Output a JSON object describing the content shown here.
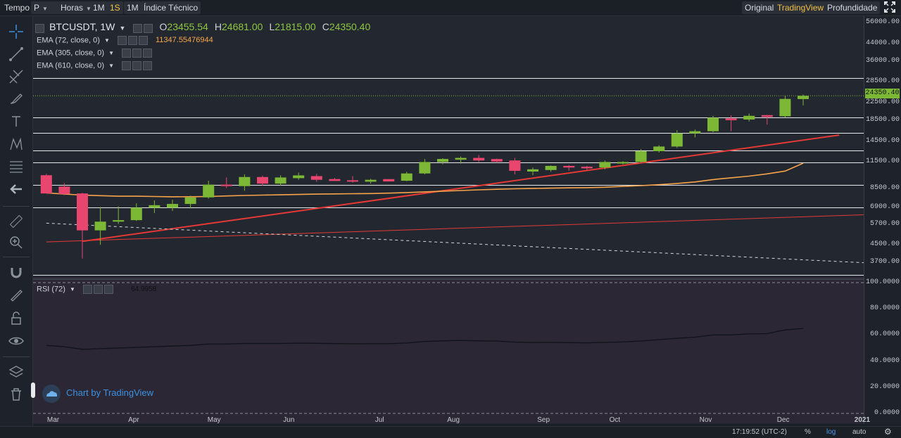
{
  "toolbar": {
    "tempo_label": "Tempo",
    "period_value": "P",
    "hours_label": "Horas",
    "interval_1m": "1M",
    "interval_1s": "1S",
    "interval_1M": "1M",
    "indicator_label": "Índice Técnico",
    "view_original": "Original",
    "view_tradingview": "TradingView",
    "view_depth": "Profundidade"
  },
  "legend": {
    "symbol": "BTCUSDT, 1W",
    "open_label": "O",
    "open": "23455.54",
    "high_label": "H",
    "high": "24681.00",
    "low_label": "L",
    "low": "21815.00",
    "close_label": "C",
    "close": "24350.40",
    "ema1_label": "EMA (72, close, 0)",
    "ema1_value": "11347.55476944",
    "ema2_label": "EMA (305, close, 0)",
    "ema3_label": "EMA (610, close, 0)",
    "rsi_label": "RSI (72)",
    "rsi_value": "64.9958"
  },
  "price_axis": {
    "ticks": [
      "56000.00",
      "44000.00",
      "36000.00",
      "28500.00",
      "22500.00",
      "18500.00",
      "14500.00",
      "11500.00",
      "8500.00",
      "6900.00",
      "5700.00",
      "4500.00",
      "3700.00"
    ],
    "current_price": "24350.40"
  },
  "rsi_axis": {
    "ticks": [
      "100.0000",
      "80.0000",
      "60.0000",
      "40.0000",
      "20.0000",
      "0.0000"
    ]
  },
  "time_axis": {
    "months": [
      "Mar",
      "Apr",
      "May",
      "Jun",
      "Jul",
      "Aug",
      "Sep",
      "Oct",
      "Nov",
      "Dec",
      "2021"
    ]
  },
  "watermark": "Chart by TradingView",
  "status": {
    "time": "17:19:52 (UTC-2)",
    "percent": "%",
    "log": "log",
    "auto": "auto"
  },
  "colors": {
    "bull": "#7cb836",
    "bear": "#e8466f",
    "ema72": "#f7a34a",
    "trend": "#e53935",
    "rsi": "#0f1218",
    "rsi_bg": "#2b2735"
  },
  "chart_data": {
    "type": "candlestick",
    "symbol": "BTCUSDT",
    "interval": "1W",
    "price_scale": "log",
    "ylim": [
      3200,
      60000
    ],
    "candles": [
      {
        "o": 9900,
        "h": 10050,
        "l": 8100,
        "c": 8050
      },
      {
        "o": 8700,
        "h": 9050,
        "l": 7900,
        "c": 8000
      },
      {
        "o": 8050,
        "h": 8100,
        "l": 3850,
        "c": 5300
      },
      {
        "o": 5300,
        "h": 6900,
        "l": 4500,
        "c": 5850
      },
      {
        "o": 5850,
        "h": 6950,
        "l": 5700,
        "c": 5950
      },
      {
        "o": 5950,
        "h": 7200,
        "l": 5900,
        "c": 6850
      },
      {
        "o": 6850,
        "h": 7450,
        "l": 6450,
        "c": 7050
      },
      {
        "o": 6850,
        "h": 7500,
        "l": 6600,
        "c": 7150
      },
      {
        "o": 7150,
        "h": 7850,
        "l": 6800,
        "c": 7700
      },
      {
        "o": 7700,
        "h": 9300,
        "l": 7600,
        "c": 8900
      },
      {
        "o": 8900,
        "h": 9650,
        "l": 8550,
        "c": 8750
      },
      {
        "o": 8750,
        "h": 10000,
        "l": 8300,
        "c": 9700
      },
      {
        "o": 9700,
        "h": 9850,
        "l": 8800,
        "c": 9000
      },
      {
        "o": 9000,
        "h": 9900,
        "l": 8800,
        "c": 9650
      },
      {
        "o": 9650,
        "h": 10200,
        "l": 9400,
        "c": 9800
      },
      {
        "o": 9800,
        "h": 10050,
        "l": 9200,
        "c": 9400
      },
      {
        "o": 9400,
        "h": 9600,
        "l": 9300,
        "c": 9350
      },
      {
        "o": 9350,
        "h": 9800,
        "l": 9100,
        "c": 9200
      },
      {
        "o": 9200,
        "h": 9500,
        "l": 9000,
        "c": 9400
      },
      {
        "o": 9400,
        "h": 9450,
        "l": 9250,
        "c": 9300
      },
      {
        "o": 9300,
        "h": 10300,
        "l": 9250,
        "c": 10100
      },
      {
        "o": 10100,
        "h": 11900,
        "l": 10000,
        "c": 11500
      },
      {
        "o": 11500,
        "h": 12000,
        "l": 11200,
        "c": 11900
      },
      {
        "o": 11900,
        "h": 12250,
        "l": 11300,
        "c": 11950
      },
      {
        "o": 12050,
        "h": 12450,
        "l": 11500,
        "c": 11700
      },
      {
        "o": 11800,
        "h": 11950,
        "l": 11400,
        "c": 11650
      },
      {
        "o": 11700,
        "h": 12050,
        "l": 10000,
        "c": 10400
      },
      {
        "o": 10400,
        "h": 10800,
        "l": 9900,
        "c": 10500
      },
      {
        "o": 10500,
        "h": 11050,
        "l": 10300,
        "c": 11000
      },
      {
        "o": 11000,
        "h": 11100,
        "l": 10400,
        "c": 10800
      },
      {
        "o": 10900,
        "h": 11000,
        "l": 10500,
        "c": 10700
      },
      {
        "o": 10800,
        "h": 11700,
        "l": 10600,
        "c": 11500
      },
      {
        "o": 11300,
        "h": 11600,
        "l": 11200,
        "c": 11500
      },
      {
        "o": 11500,
        "h": 13300,
        "l": 11400,
        "c": 13000
      },
      {
        "o": 13000,
        "h": 13900,
        "l": 12800,
        "c": 13700
      },
      {
        "o": 13700,
        "h": 16500,
        "l": 13500,
        "c": 15900
      },
      {
        "o": 15900,
        "h": 16600,
        "l": 15200,
        "c": 16300
      },
      {
        "o": 16300,
        "h": 19400,
        "l": 16100,
        "c": 19000
      },
      {
        "o": 18700,
        "h": 19500,
        "l": 16300,
        "c": 18600
      },
      {
        "o": 18600,
        "h": 19900,
        "l": 18200,
        "c": 19400
      },
      {
        "o": 19400,
        "h": 19600,
        "l": 17600,
        "c": 19300
      },
      {
        "o": 19300,
        "h": 24300,
        "l": 19000,
        "c": 23500
      },
      {
        "o": 23455.54,
        "h": 24681,
        "l": 21815,
        "c": 24350.4
      }
    ],
    "ema72": [
      8100,
      8000,
      7900,
      7850,
      7800,
      7800,
      7780,
      7750,
      7760,
      7780,
      7830,
      7870,
      7900,
      7930,
      7960,
      7990,
      8010,
      8030,
      8040,
      8080,
      8130,
      8200,
      8260,
      8320,
      8390,
      8440,
      8490,
      8520,
      8550,
      8580,
      8600,
      8640,
      8720,
      8800,
      8890,
      9020,
      9170,
      9420,
      9610,
      9800,
      10050,
      10380,
      11347.55
    ],
    "trendlines": [
      {
        "from": {
          "i": 2,
          "p": 4680
        },
        "to": {
          "i": 44,
          "p": 15600
        },
        "color": "red",
        "width": 2
      },
      {
        "from": {
          "i": 0,
          "p": 4650
        },
        "to": {
          "i": 46,
          "p": 6350
        },
        "color": "red",
        "width": 1
      },
      {
        "from": {
          "i": 0,
          "p": 5750
        },
        "to": {
          "i": 46,
          "p": 3650
        },
        "color": "white",
        "dashed": true
      }
    ],
    "horizontal_levels": [
      29800,
      19050,
      16050,
      13100,
      11400,
      8900,
      6850,
      3200
    ],
    "rsi": {
      "name": "RSI (72)",
      "ylim": [
        0,
        100
      ],
      "bands": [
        100,
        0
      ],
      "values": [
        52,
        51,
        49,
        49.5,
        50,
        50.5,
        51,
        51.5,
        52,
        53,
        53,
        53.5,
        53.5,
        53.5,
        53.7,
        53.6,
        53.4,
        53.2,
        53.3,
        53.3,
        53.8,
        55,
        55.5,
        55.8,
        55.5,
        55.3,
        54.5,
        54.2,
        54.3,
        54.1,
        54,
        54.3,
        54.6,
        55.4,
        56.4,
        57.5,
        58.3,
        60,
        60,
        60.8,
        61,
        63.8,
        64.9958
      ]
    }
  }
}
